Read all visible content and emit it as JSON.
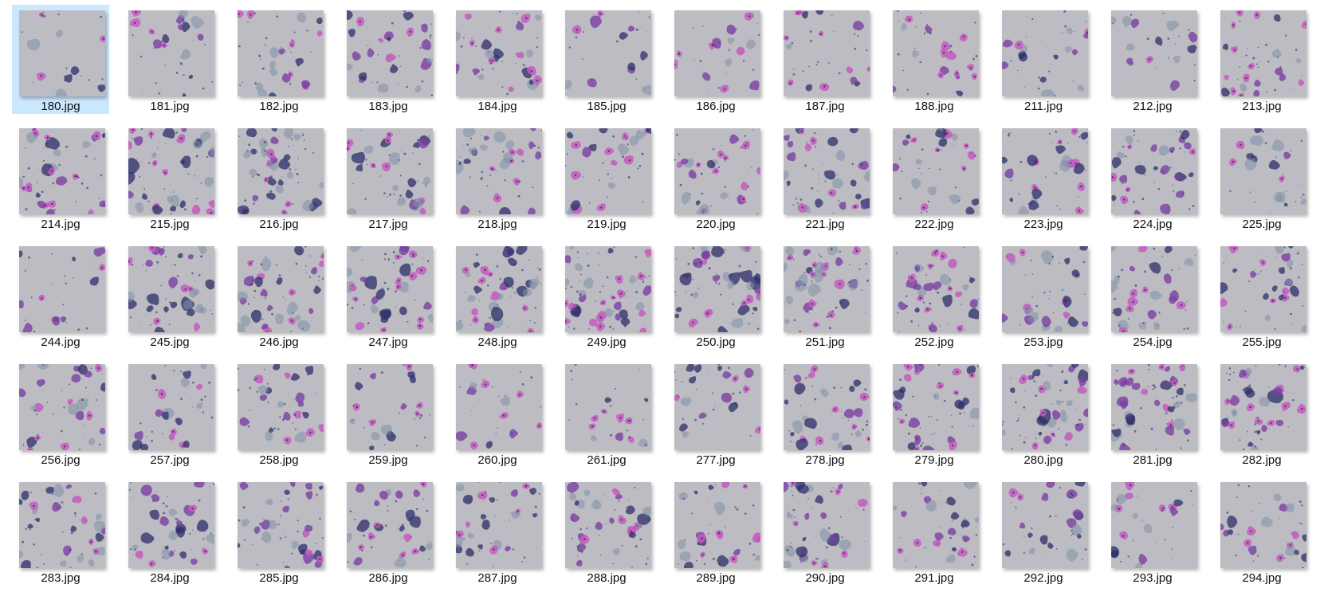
{
  "view": {
    "selected_index": 0,
    "files": [
      {
        "name": "180.jpg",
        "density": 0.1
      },
      {
        "name": "181.jpg",
        "density": 0.25
      },
      {
        "name": "182.jpg",
        "density": 0.35
      },
      {
        "name": "183.jpg",
        "density": 0.45
      },
      {
        "name": "184.jpg",
        "density": 0.5
      },
      {
        "name": "185.jpg",
        "density": 0.15
      },
      {
        "name": "186.jpg",
        "density": 0.2
      },
      {
        "name": "187.jpg",
        "density": 0.25
      },
      {
        "name": "188.jpg",
        "density": 0.3
      },
      {
        "name": "211.jpg",
        "density": 0.25
      },
      {
        "name": "212.jpg",
        "density": 0.2
      },
      {
        "name": "213.jpg",
        "density": 0.45
      },
      {
        "name": "214.jpg",
        "density": 0.6
      },
      {
        "name": "215.jpg",
        "density": 0.75
      },
      {
        "name": "216.jpg",
        "density": 0.75
      },
      {
        "name": "217.jpg",
        "density": 0.55
      },
      {
        "name": "218.jpg",
        "density": 0.5
      },
      {
        "name": "219.jpg",
        "density": 0.4
      },
      {
        "name": "220.jpg",
        "density": 0.45
      },
      {
        "name": "221.jpg",
        "density": 0.6
      },
      {
        "name": "222.jpg",
        "density": 0.4
      },
      {
        "name": "223.jpg",
        "density": 0.45
      },
      {
        "name": "224.jpg",
        "density": 0.55
      },
      {
        "name": "225.jpg",
        "density": 0.25
      },
      {
        "name": "244.jpg",
        "density": 0.15
      },
      {
        "name": "245.jpg",
        "density": 0.65
      },
      {
        "name": "246.jpg",
        "density": 0.65
      },
      {
        "name": "247.jpg",
        "density": 0.7
      },
      {
        "name": "248.jpg",
        "density": 0.7
      },
      {
        "name": "249.jpg",
        "density": 0.8
      },
      {
        "name": "250.jpg",
        "density": 0.75
      },
      {
        "name": "251.jpg",
        "density": 0.65
      },
      {
        "name": "252.jpg",
        "density": 0.6
      },
      {
        "name": "253.jpg",
        "density": 0.45
      },
      {
        "name": "254.jpg",
        "density": 0.5
      },
      {
        "name": "255.jpg",
        "density": 0.5
      },
      {
        "name": "256.jpg",
        "density": 0.5
      },
      {
        "name": "257.jpg",
        "density": 0.35
      },
      {
        "name": "258.jpg",
        "density": 0.45
      },
      {
        "name": "259.jpg",
        "density": 0.25
      },
      {
        "name": "260.jpg",
        "density": 0.2
      },
      {
        "name": "261.jpg",
        "density": 0.15
      },
      {
        "name": "277.jpg",
        "density": 0.3
      },
      {
        "name": "278.jpg",
        "density": 0.55
      },
      {
        "name": "279.jpg",
        "density": 0.6
      },
      {
        "name": "280.jpg",
        "density": 0.7
      },
      {
        "name": "281.jpg",
        "density": 0.75
      },
      {
        "name": "282.jpg",
        "density": 0.65
      },
      {
        "name": "283.jpg",
        "density": 0.6
      },
      {
        "name": "284.jpg",
        "density": 0.55
      },
      {
        "name": "285.jpg",
        "density": 0.55
      },
      {
        "name": "286.jpg",
        "density": 0.5
      },
      {
        "name": "287.jpg",
        "density": 0.5
      },
      {
        "name": "288.jpg",
        "density": 0.55
      },
      {
        "name": "289.jpg",
        "density": 0.45
      },
      {
        "name": "290.jpg",
        "density": 0.65
      },
      {
        "name": "291.jpg",
        "density": 0.45
      },
      {
        "name": "292.jpg",
        "density": 0.35
      },
      {
        "name": "293.jpg",
        "density": 0.3
      },
      {
        "name": "294.jpg",
        "density": 0.35
      }
    ]
  },
  "colors": {
    "selection_bg": "#cce8ff",
    "slide_bg": "#bcbcc2",
    "pink_cell": "#c45cbf",
    "purple_cell": "#7a3fa3",
    "dark_cluster": "#2e2f6a",
    "blue_gray_cell": "#7e8fa8"
  }
}
